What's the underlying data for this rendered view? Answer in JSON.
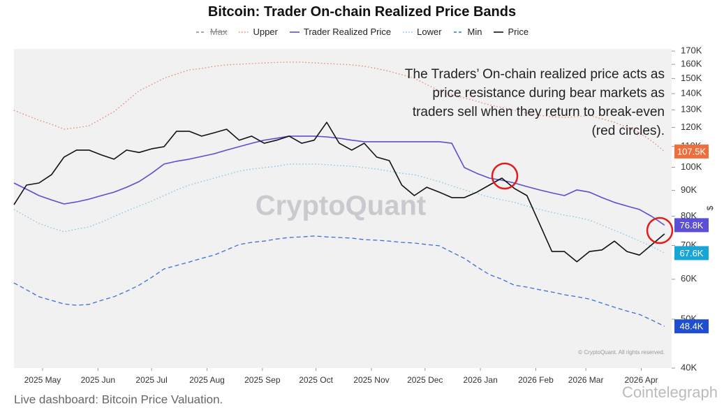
{
  "chart_data": {
    "type": "line",
    "title": "Bitcoin: Trader On-chain Realized Price Bands",
    "annotation": [
      "The Traders’ On-chain realized price acts as",
      "price resistance during bear markets as",
      "traders sell when they return to break-even",
      "(red circles)."
    ],
    "watermark": "CryptoQuant",
    "copyright": "© CryptoQuant. All rights reserved.",
    "footer": "Live dashboard: Bitcoin Price Valuation.",
    "source_watermark": "Cointelegraph",
    "y_unit": "$",
    "log_scale": true,
    "x": [
      "2025-04-15",
      "2025-04-22",
      "2025-04-29",
      "2025-05-06",
      "2025-05-13",
      "2025-05-20",
      "2025-05-27",
      "2025-06-03",
      "2025-06-10",
      "2025-06-17",
      "2025-06-24",
      "2025-07-01",
      "2025-07-08",
      "2025-07-15",
      "2025-07-22",
      "2025-07-29",
      "2025-08-05",
      "2025-08-12",
      "2025-08-19",
      "2025-08-26",
      "2025-09-02",
      "2025-09-09",
      "2025-09-16",
      "2025-09-23",
      "2025-09-30",
      "2025-10-07",
      "2025-10-14",
      "2025-10-21",
      "2025-10-28",
      "2025-11-04",
      "2025-11-11",
      "2025-11-18",
      "2025-11-25",
      "2025-12-02",
      "2025-12-09",
      "2025-12-16",
      "2025-12-23",
      "2025-12-30",
      "2026-01-06",
      "2026-01-13",
      "2026-01-20",
      "2026-01-27",
      "2026-02-03",
      "2026-02-10",
      "2026-02-17",
      "2026-02-24",
      "2026-03-03",
      "2026-03-10",
      "2026-03-17",
      "2026-03-24",
      "2026-03-31",
      "2026-04-07",
      "2026-04-14"
    ],
    "xlim": [
      "2025-04-15",
      "2026-04-18"
    ],
    "xticks": [
      {
        "value": "2025-05-01",
        "label": "2025 May"
      },
      {
        "value": "2025-06-01",
        "label": "2025 Jun"
      },
      {
        "value": "2025-07-01",
        "label": "2025 Jul"
      },
      {
        "value": "2025-08-01",
        "label": "2025 Aug"
      },
      {
        "value": "2025-09-01",
        "label": "2025 Sep"
      },
      {
        "value": "2025-10-01",
        "label": "2025 Oct"
      },
      {
        "value": "2025-11-01",
        "label": "2025 Nov"
      },
      {
        "value": "2025-12-01",
        "label": "2025 Dec"
      },
      {
        "value": "2026-01-01",
        "label": "2026 Jan"
      },
      {
        "value": "2026-02-01",
        "label": "2026 Feb"
      },
      {
        "value": "2026-03-01",
        "label": "2026 Mar"
      },
      {
        "value": "2026-04-01",
        "label": "2026 Apr"
      }
    ],
    "ylim": [
      40000,
      171700
    ],
    "yticks": [
      {
        "value": 40000,
        "label": "40K"
      },
      {
        "value": 50000,
        "label": "50K"
      },
      {
        "value": 60000,
        "label": "60K"
      },
      {
        "value": 70000,
        "label": "70K"
      },
      {
        "value": 80000,
        "label": "80K"
      },
      {
        "value": 90000,
        "label": "90K"
      },
      {
        "value": 100000,
        "label": "100K"
      },
      {
        "value": 110000,
        "label": "110K"
      },
      {
        "value": 120000,
        "label": "120K"
      },
      {
        "value": 130000,
        "label": "130K"
      },
      {
        "value": 140000,
        "label": "140K"
      },
      {
        "value": 150000,
        "label": "150K"
      },
      {
        "value": 160000,
        "label": "160K"
      },
      {
        "value": 170000,
        "label": "170K"
      }
    ],
    "hidden_series": [
      {
        "name": "Max",
        "color": "#8a8a8a",
        "style": "dashed"
      }
    ],
    "series": [
      {
        "name": "Upper",
        "color": "#e8826a",
        "style": "dotted",
        "end_color": "#ee6f3c",
        "end_label": "107.5K",
        "values": [
          129700,
          126800,
          124000,
          121700,
          119000,
          119800,
          120900,
          124800,
          128900,
          135200,
          141800,
          145900,
          150200,
          153100,
          156000,
          157000,
          158600,
          159600,
          160100,
          160600,
          161100,
          161400,
          161600,
          161600,
          161100,
          160600,
          160100,
          159600,
          158600,
          157000,
          155000,
          152600,
          150200,
          145900,
          141800,
          139600,
          137300,
          135200,
          133000,
          131400,
          129700,
          128100,
          126800,
          126000,
          125600,
          126000,
          126800,
          124800,
          122800,
          120100,
          117100,
          112700,
          107500
        ]
      },
      {
        "name": "Trader Realized Price",
        "color": "#5a4fcf",
        "style": "solid",
        "end_color": "#5b4fd6",
        "end_label": "76.8K",
        "values": [
          93100,
          90500,
          87900,
          86200,
          84600,
          85400,
          86500,
          87900,
          89300,
          91300,
          93700,
          97300,
          101500,
          102800,
          103800,
          105100,
          106400,
          108200,
          109900,
          111600,
          113200,
          114200,
          115300,
          115300,
          115300,
          114900,
          114200,
          113200,
          112400,
          112400,
          112400,
          112400,
          112400,
          112400,
          112400,
          111600,
          99900,
          97300,
          95200,
          94300,
          93100,
          91600,
          90200,
          89000,
          87900,
          90200,
          89300,
          87100,
          85200,
          83800,
          82500,
          79900,
          76800
        ]
      },
      {
        "name": "Lower",
        "color": "#7cc4e8",
        "style": "dotted",
        "end_color": "#19a6d6",
        "end_label": "67.6K",
        "values": [
          82500,
          79900,
          77400,
          75900,
          74500,
          75400,
          76200,
          77900,
          79900,
          81900,
          83800,
          85700,
          87900,
          90200,
          92200,
          93700,
          95200,
          96700,
          98300,
          99200,
          99900,
          100500,
          101500,
          101500,
          101500,
          101200,
          100800,
          100500,
          99900,
          99200,
          98300,
          97300,
          96700,
          95200,
          93700,
          91900,
          90200,
          88800,
          87300,
          86200,
          85200,
          83800,
          82500,
          81400,
          80400,
          79600,
          78600,
          76800,
          75000,
          73300,
          71400,
          69700,
          67600
        ]
      },
      {
        "name": "Min",
        "color": "#3c6fd4",
        "style": "dashed",
        "end_color": "#1f4fd0",
        "end_label": "48.4K",
        "values": [
          59000,
          57200,
          55400,
          54500,
          53600,
          53300,
          53500,
          54500,
          55400,
          56800,
          58400,
          60500,
          62900,
          63900,
          64900,
          66000,
          67000,
          68600,
          70300,
          71000,
          71400,
          72100,
          72600,
          72800,
          73100,
          72800,
          72600,
          72400,
          71900,
          71700,
          71400,
          71000,
          70800,
          70300,
          69900,
          67900,
          66000,
          63500,
          61300,
          60000,
          58400,
          57900,
          57200,
          56600,
          55900,
          55400,
          54800,
          53800,
          52800,
          51900,
          51100,
          49800,
          48400
        ]
      },
      {
        "name": "Price",
        "color": "#111111",
        "style": "solid",
        "values": [
          84300,
          92200,
          93100,
          96700,
          104800,
          108200,
          108200,
          105800,
          103800,
          108200,
          107000,
          108800,
          109900,
          117900,
          117900,
          115300,
          117100,
          119000,
          113200,
          115300,
          111600,
          113200,
          115300,
          111600,
          113200,
          122800,
          111600,
          108200,
          111600,
          104800,
          103100,
          92200,
          87900,
          91300,
          89300,
          87100,
          87100,
          89300,
          92200,
          95200,
          90800,
          87900,
          77400,
          68100,
          68100,
          65000,
          68100,
          68600,
          71400,
          68100,
          67000,
          70300,
          73800
        ]
      }
    ]
  }
}
